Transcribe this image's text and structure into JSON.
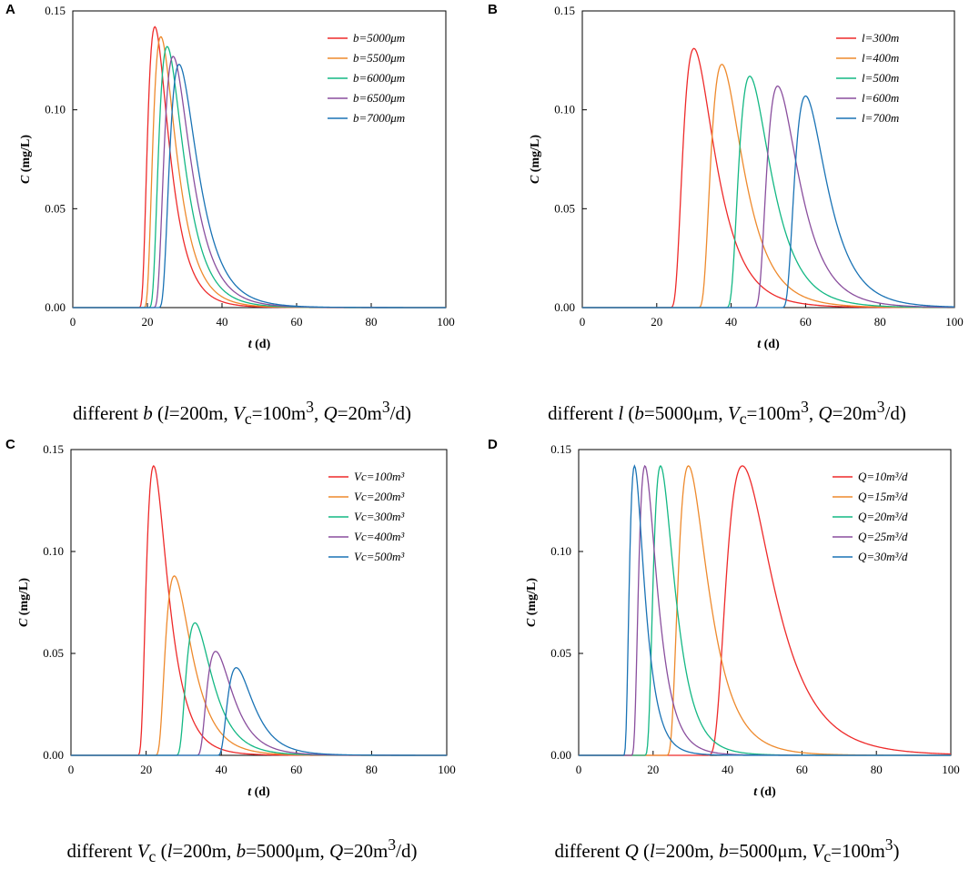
{
  "colors": [
    "#ee2a2a",
    "#ee8a2d",
    "#14b884",
    "#8a4f9e",
    "#1a73b5"
  ],
  "chart_data": [
    {
      "panel": "A",
      "type": "line",
      "xlabel_var": "t",
      "xlabel_unit": " (d)",
      "ylabel_var": "C",
      "ylabel_unit": " (mg/L)",
      "xlim": [
        0,
        100
      ],
      "ylim": [
        0,
        0.15
      ],
      "xticks": [
        "0",
        "20",
        "40",
        "60",
        "80",
        "100"
      ],
      "yticks": [
        "0.00",
        "0.05",
        "0.10",
        "0.15"
      ],
      "legend_position": "top-right",
      "series": [
        {
          "name": "b=5000μm",
          "start": 17.0,
          "peak_t": 22.0,
          "peak_c": 0.142
        },
        {
          "name": "b=5500μm",
          "start": 18.2,
          "peak_t": 23.6,
          "peak_c": 0.137
        },
        {
          "name": "b=6000μm",
          "start": 19.5,
          "peak_t": 25.3,
          "peak_c": 0.132
        },
        {
          "name": "b=6500μm",
          "start": 20.7,
          "peak_t": 26.9,
          "peak_c": 0.127
        },
        {
          "name": "b=7000μm",
          "start": 22.0,
          "peak_t": 28.5,
          "peak_c": 0.123
        }
      ]
    },
    {
      "panel": "B",
      "type": "line",
      "xlabel_var": "t",
      "xlabel_unit": " (d)",
      "ylabel_var": "C",
      "ylabel_unit": " (mg/L)",
      "xlim": [
        0,
        100
      ],
      "ylim": [
        0,
        0.15
      ],
      "xticks": [
        "0",
        "20",
        "40",
        "60",
        "80",
        "100"
      ],
      "yticks": [
        "0.00",
        "0.05",
        "0.10",
        "0.15"
      ],
      "legend_position": "top-right",
      "series": [
        {
          "name": "l=300m",
          "start": 22.5,
          "peak_t": 30.0,
          "peak_c": 0.131
        },
        {
          "name": "l=400m",
          "start": 30.0,
          "peak_t": 37.5,
          "peak_c": 0.123
        },
        {
          "name": "l=500m",
          "start": 37.5,
          "peak_t": 45.0,
          "peak_c": 0.117
        },
        {
          "name": "l=600m",
          "start": 45.0,
          "peak_t": 52.5,
          "peak_c": 0.112
        },
        {
          "name": "l=700m",
          "start": 52.5,
          "peak_t": 60.0,
          "peak_c": 0.107
        }
      ]
    },
    {
      "panel": "C",
      "type": "line",
      "xlabel_var": "t",
      "xlabel_unit": " (d)",
      "ylabel_var": "C",
      "ylabel_unit": " (mg/L)",
      "xlim": [
        0,
        100
      ],
      "ylim": [
        0,
        0.15
      ],
      "xticks": [
        "0",
        "20",
        "40",
        "60",
        "80",
        "100"
      ],
      "yticks": [
        "0.00",
        "0.05",
        "0.10",
        "0.15"
      ],
      "legend_position": "top-right",
      "series": [
        {
          "name": "Vc=100m³",
          "start": 17.0,
          "peak_t": 22.0,
          "peak_c": 0.142
        },
        {
          "name": "Vc=200m³",
          "start": 21.5,
          "peak_t": 27.5,
          "peak_c": 0.088
        },
        {
          "name": "Vc=300m³",
          "start": 27.0,
          "peak_t": 33.0,
          "peak_c": 0.065
        },
        {
          "name": "Vc=400m³",
          "start": 32.5,
          "peak_t": 38.5,
          "peak_c": 0.051
        },
        {
          "name": "Vc=500m³",
          "start": 38.0,
          "peak_t": 44.0,
          "peak_c": 0.043
        }
      ]
    },
    {
      "panel": "D",
      "type": "line",
      "xlabel_var": "t",
      "xlabel_unit": " (d)",
      "ylabel_var": "C",
      "ylabel_unit": " (mg/L)",
      "xlim": [
        0,
        100
      ],
      "ylim": [
        0,
        0.15
      ],
      "xticks": [
        "0",
        "20",
        "40",
        "60",
        "80",
        "100"
      ],
      "yticks": [
        "0.00",
        "0.05",
        "0.10",
        "0.15"
      ],
      "legend_position": "top-right",
      "series": [
        {
          "name": "Q=10m³/d",
          "start": 33.0,
          "peak_t": 44.0,
          "peak_c": 0.142
        },
        {
          "name": "Q=15m³/d",
          "start": 22.5,
          "peak_t": 29.5,
          "peak_c": 0.142
        },
        {
          "name": "Q=20m³/d",
          "start": 17.0,
          "peak_t": 22.0,
          "peak_c": 0.142
        },
        {
          "name": "Q=25m³/d",
          "start": 13.5,
          "peak_t": 17.8,
          "peak_c": 0.142
        },
        {
          "name": "Q=30m³/d",
          "start": 11.5,
          "peak_t": 15.0,
          "peak_c": 0.142
        }
      ]
    }
  ],
  "captions": {
    "A": {
      "pre": "different ",
      "var": "b",
      "mid": " (",
      "v1": "l",
      "t1": "=200m, ",
      "v2": "V",
      "s2": "c",
      "t2": "=100m",
      "p2": "3",
      "t3": ", ",
      "v3": "Q",
      "t4": "=20m",
      "p4": "3",
      "t5": "/d)"
    },
    "B": {
      "pre": "different ",
      "var": "l",
      "mid": " (",
      "v1": "b",
      "t1": "=5000μm, ",
      "v2": "V",
      "s2": "c",
      "t2": "=100m",
      "p2": "3",
      "t3": ", ",
      "v3": "Q",
      "t4": "=20m",
      "p4": "3",
      "t5": "/d)"
    },
    "C": {
      "pre": "different ",
      "var": "V",
      "vsub": "c",
      "mid": " (",
      "v1": "l",
      "t1": "=200m, ",
      "v2": "b",
      "t2": "=5000μm, ",
      "v3": "Q",
      "t4": "=20m",
      "p4": "3",
      "t5": "/d)"
    },
    "D": {
      "pre": "different ",
      "var": "Q",
      "mid": " (",
      "v1": "l",
      "t1": "=200m, ",
      "v2": "b",
      "t2": "=5000μm, ",
      "v3": "V",
      "s3": "c",
      "t4": "=100m",
      "p4": "3",
      "t5": ")"
    }
  }
}
